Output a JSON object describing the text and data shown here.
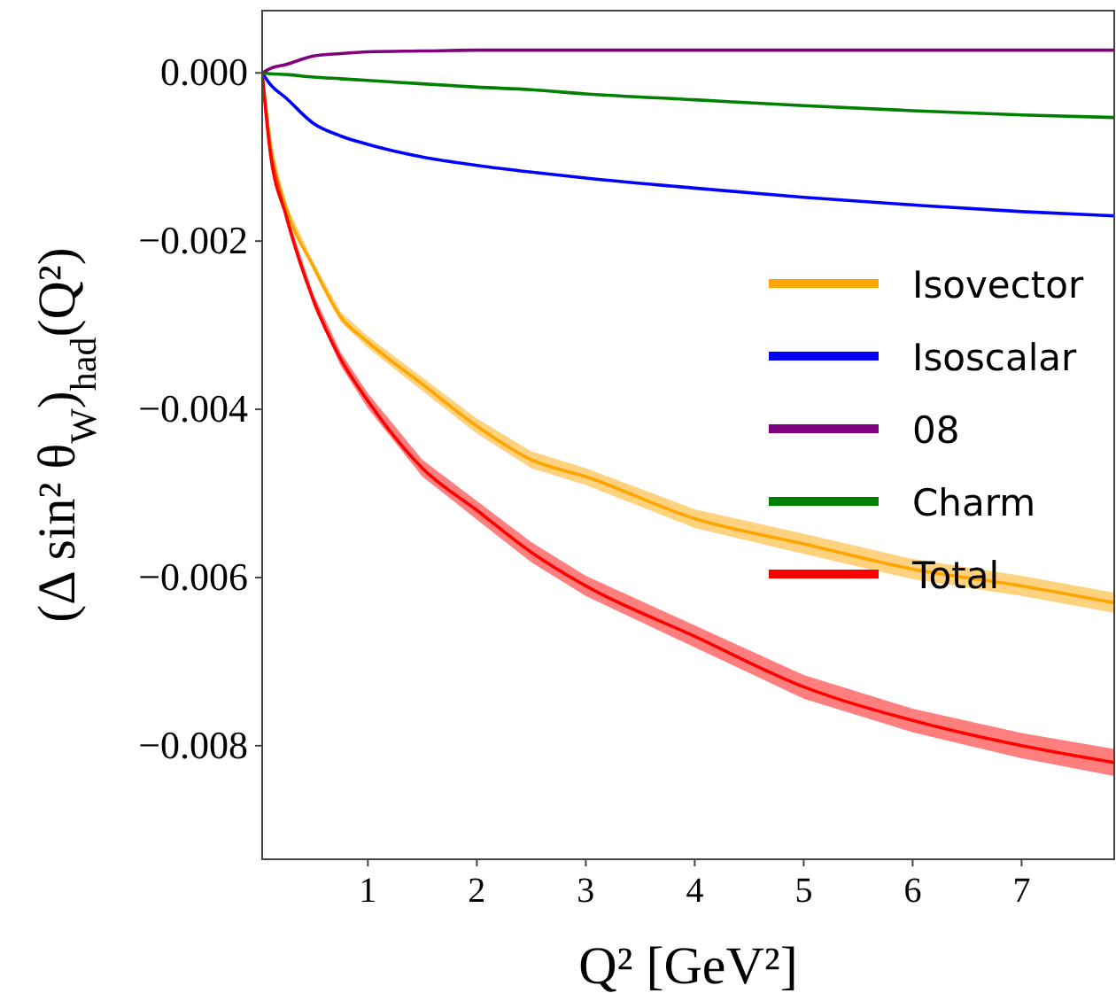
{
  "chart_data": {
    "type": "line",
    "xlabel": "Q² [GeV²]",
    "ylabel": "(Δ sin² θ$_{W}$)$_{had}$(Q²)",
    "x": [
      0.03,
      0.1,
      0.25,
      0.5,
      0.75,
      1,
      1.5,
      2,
      2.5,
      3,
      4,
      5,
      6,
      7,
      7.85
    ],
    "series": [
      {
        "name": "Isovector",
        "color": "#ffa500",
        "values": [
          0,
          -0.0008,
          -0.0016,
          -0.0023,
          -0.0029,
          -0.0032,
          -0.0037,
          -0.0042,
          -0.0046,
          -0.0048,
          -0.0053,
          -0.0056,
          -0.0059,
          -0.0061,
          -0.0063
        ],
        "lower": [
          0,
          -0.00083,
          -0.00164,
          -0.00235,
          -0.00296,
          -0.00327,
          -0.00378,
          -0.00429,
          -0.0047,
          -0.0049,
          -0.00541,
          -0.00572,
          -0.00602,
          -0.00622,
          -0.00642
        ],
        "upper": [
          0,
          -0.00077,
          -0.00156,
          -0.00225,
          -0.00284,
          -0.00313,
          -0.00362,
          -0.00411,
          -0.0045,
          -0.0047,
          -0.00519,
          -0.00548,
          -0.00578,
          -0.00598,
          -0.00618
        ]
      },
      {
        "name": "Isoscalar",
        "color": "#0000ff",
        "values": [
          0,
          -0.00013,
          -0.0003,
          -0.0006,
          -0.00075,
          -0.00085,
          -0.001,
          -0.0011,
          -0.00118,
          -0.00125,
          -0.00137,
          -0.00148,
          -0.00157,
          -0.00165,
          -0.0017
        ]
      },
      {
        "name": "08",
        "color": "#800080",
        "values": [
          0,
          5e-05,
          0.0001,
          0.0002,
          0.00023,
          0.00025,
          0.00026,
          0.00027,
          0.00027,
          0.00027,
          0.00027,
          0.00027,
          0.00027,
          0.00027,
          0.00027
        ]
      },
      {
        "name": "Charm",
        "color": "#008000",
        "values": [
          0,
          -1e-05,
          -2e-05,
          -5e-05,
          -7e-05,
          -9e-05,
          -0.00013,
          -0.00017,
          -0.0002,
          -0.00025,
          -0.00032,
          -0.00039,
          -0.00045,
          -0.0005,
          -0.00053
        ]
      },
      {
        "name": "Total",
        "color": "#ff0000",
        "values": [
          0,
          -0.0009,
          -0.0017,
          -0.0027,
          -0.0034,
          -0.0039,
          -0.0047,
          -0.0052,
          -0.0057,
          -0.0061,
          -0.0067,
          -0.0073,
          -0.0077,
          -0.008,
          -0.0082
        ],
        "lower": [
          0,
          -0.00093,
          -0.00175,
          -0.00277,
          -0.00348,
          -0.00399,
          -0.0048,
          -0.00531,
          -0.00582,
          -0.00622,
          -0.00683,
          -0.00744,
          -0.00784,
          -0.00815,
          -0.00836
        ],
        "upper": [
          0,
          -0.00087,
          -0.00165,
          -0.00263,
          -0.00332,
          -0.00381,
          -0.0046,
          -0.00509,
          -0.00558,
          -0.00598,
          -0.00657,
          -0.00716,
          -0.00756,
          -0.00785,
          -0.00804
        ]
      }
    ],
    "xlim": [
      0.03,
      7.85
    ],
    "ylim": [
      -0.00935,
      0.00074
    ],
    "xticks": [
      1,
      2,
      3,
      4,
      5,
      6,
      7
    ],
    "yticks": [
      {
        "value": 0,
        "label": "0.000"
      },
      {
        "value": -0.002,
        "label": "−0.002"
      },
      {
        "value": -0.004,
        "label": "−0.004"
      },
      {
        "value": -0.006,
        "label": "−0.006"
      },
      {
        "value": -0.008,
        "label": "−0.008"
      }
    ],
    "legend": "right",
    "grid": false,
    "marker": "none",
    "line_style": "solid"
  }
}
